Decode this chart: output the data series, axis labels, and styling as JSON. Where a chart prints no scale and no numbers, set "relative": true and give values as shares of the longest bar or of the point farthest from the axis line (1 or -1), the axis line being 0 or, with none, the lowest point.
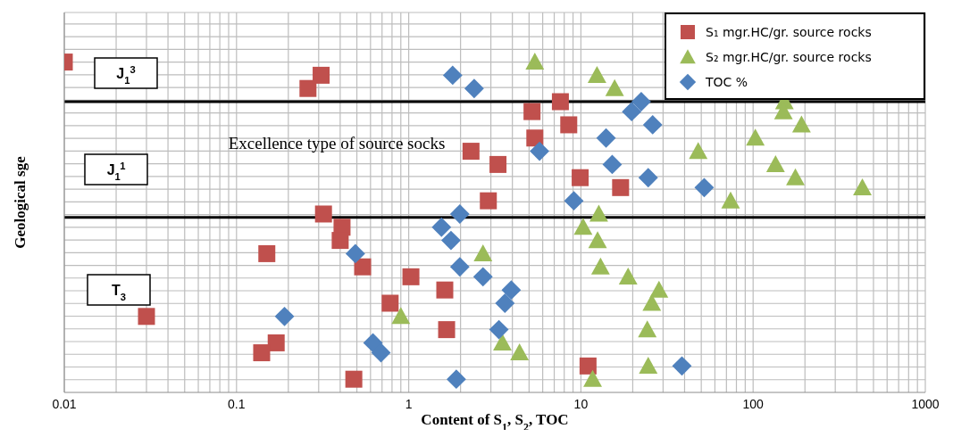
{
  "chart_data": {
    "type": "scatter",
    "xlabel": "Content of S$_{1}$, S$_{2}$, TOC",
    "ylabel": "Geological sge",
    "relative": true,
    "log": "x",
    "xlim": [
      0.01,
      1000
    ],
    "xticks": [
      0.01,
      0.1,
      1,
      10,
      100,
      1000
    ],
    "grid": true,
    "legend": "top right",
    "ref_lines": [
      {
        "axis": "y",
        "value": 0.88,
        "color": "#000000"
      },
      {
        "axis": "y",
        "value": 0.53,
        "color": "#000000"
      }
    ],
    "annotations": [
      "J$_{1}$$^{3}$",
      "J$_{1}$$^{1}$",
      "T$_{3}$",
      "Excellence type  of source socks"
    ],
    "series": [
      {
        "name": "S₁ mgr.HC/gr. source rocks",
        "color": "#c0504d",
        "marker": "square",
        "x": [
          0.01,
          0.31,
          0.26,
          7.6,
          5.2,
          8.5,
          5.4,
          2.3,
          3.3,
          9.9,
          17,
          2.9,
          0.32,
          0.41,
          0.4,
          0.15,
          0.54,
          1.03,
          1.62,
          0.78,
          0.03,
          1.66,
          0.17,
          0.14,
          11,
          0.48
        ],
        "values": [
          1,
          0.96,
          0.92,
          0.88,
          0.85,
          0.81,
          0.77,
          0.73,
          0.69,
          0.65,
          0.62,
          0.58,
          0.54,
          0.5,
          0.46,
          0.42,
          0.38,
          0.35,
          0.31,
          0.27,
          0.23,
          0.19,
          0.15,
          0.12,
          0.08,
          0.04
        ]
      },
      {
        "name": "S₂ mgr.HC/gr. source rocks",
        "color": "#9bbb59",
        "marker": "triangle",
        "x": [
          5.4,
          12.4,
          15.7,
          152,
          150,
          191,
          103,
          48,
          135,
          176,
          431,
          74,
          12.7,
          10.3,
          12.5,
          2.7,
          13,
          18.8,
          28.4,
          25.8,
          0.9,
          24.3,
          3.5,
          4.4,
          24.6,
          11.7
        ],
        "values": [
          1,
          0.96,
          0.92,
          0.88,
          0.85,
          0.81,
          0.77,
          0.73,
          0.69,
          0.65,
          0.62,
          0.58,
          0.54,
          0.5,
          0.46,
          0.42,
          0.38,
          0.35,
          0.31,
          0.27,
          0.23,
          0.19,
          0.15,
          0.12,
          0.08,
          0.04
        ]
      },
      {
        "name": "TOC %",
        "color": "#4f81bd",
        "marker": "diamond",
        "x": [
          1.8,
          2.4,
          22.4,
          19.7,
          26.1,
          14,
          5.75,
          15.2,
          24.6,
          52,
          9.1,
          1.98,
          1.55,
          1.76,
          0.49,
          1.98,
          2.7,
          3.94,
          3.62,
          0.19,
          3.34,
          0.62,
          0.69,
          38.6,
          1.89
        ],
        "values": [
          0.96,
          0.92,
          0.88,
          0.85,
          0.81,
          0.77,
          0.73,
          0.69,
          0.65,
          0.62,
          0.58,
          0.54,
          0.5,
          0.46,
          0.42,
          0.38,
          0.35,
          0.31,
          0.27,
          0.23,
          0.19,
          0.15,
          0.12,
          0.08,
          0.04
        ]
      }
    ]
  }
}
